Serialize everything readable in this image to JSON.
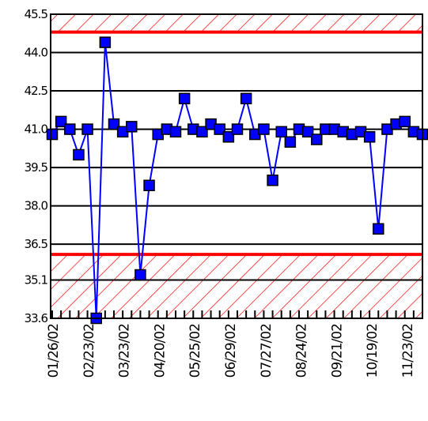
{
  "chart_data": {
    "type": "line",
    "title": "",
    "xlabel": "",
    "ylabel": "",
    "ylim": [
      33.6,
      45.5
    ],
    "y_ticks": [
      "45.5",
      "44.0",
      "42.5",
      "41.0",
      "39.5",
      "38.0",
      "36.5",
      "35.1",
      "33.6"
    ],
    "y_tick_values": [
      45.5,
      44.0,
      42.5,
      41.0,
      39.5,
      38.0,
      36.5,
      35.1,
      33.6
    ],
    "x_ticks": [
      "01/26/02",
      "02/23/02",
      "03/23/02",
      "04/20/02",
      "05/25/02",
      "06/29/02",
      "07/27/02",
      "08/24/02",
      "09/21/02",
      "10/19/02",
      "11/23/02"
    ],
    "grid": true,
    "legend": "none",
    "colors": {
      "line": "#0000ff",
      "marker": "#0000ff",
      "limit": "#ff0000",
      "grid": "#000000"
    },
    "bands": [
      {
        "type": "upper-limit",
        "from": 44.8,
        "to": 45.5
      },
      {
        "type": "lower-limit",
        "from": 33.6,
        "to": 36.1
      }
    ],
    "series": [
      {
        "values": [
          40.8,
          41.3,
          41.0,
          40.0,
          41.0,
          33.6,
          44.4,
          41.2,
          40.9,
          41.1,
          35.3,
          38.8,
          40.8,
          41.0,
          40.9,
          42.2,
          41.0,
          40.9,
          41.2,
          41.0,
          40.7,
          41.0,
          42.2,
          40.8,
          41.0,
          39.0,
          40.9,
          40.5,
          41.0,
          40.9,
          40.6,
          41.0,
          41.0,
          40.9,
          40.8,
          40.9,
          40.7,
          37.1,
          41.0,
          41.2,
          41.3,
          40.9,
          40.8
        ]
      }
    ]
  }
}
